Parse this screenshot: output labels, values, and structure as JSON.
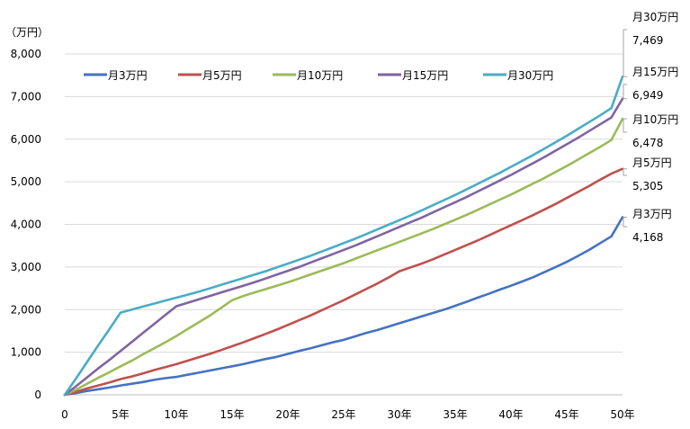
{
  "chart_data": {
    "type": "line",
    "title": "",
    "y_unit_label": "（万円）",
    "xlabel": "",
    "ylabel": "",
    "x": [
      0,
      1,
      2,
      3,
      4,
      5,
      6,
      7,
      8,
      9,
      10,
      11,
      12,
      13,
      14,
      15,
      16,
      17,
      18,
      19,
      20,
      21,
      22,
      23,
      24,
      25,
      26,
      27,
      28,
      29,
      30,
      31,
      32,
      33,
      34,
      35,
      36,
      37,
      38,
      39,
      40,
      41,
      42,
      43,
      44,
      45,
      46,
      47,
      48,
      49,
      50
    ],
    "x_tick_values": [
      0,
      5,
      10,
      15,
      20,
      25,
      30,
      35,
      40,
      45,
      50
    ],
    "x_tick_labels": [
      "0",
      "5年",
      "10年",
      "15年",
      "20年",
      "25年",
      "30年",
      "35年",
      "40年",
      "45年",
      "50年"
    ],
    "y_tick_values": [
      0,
      1000,
      2000,
      3000,
      4000,
      5000,
      6000,
      7000,
      8000
    ],
    "y_tick_labels": [
      "0",
      "1,000",
      "2,000",
      "3,000",
      "4,000",
      "5,000",
      "6,000",
      "7,000",
      "8,000"
    ],
    "xlim": [
      0,
      50
    ],
    "ylim": [
      0,
      8000
    ],
    "grid": true,
    "legend_position": "top",
    "series": [
      {
        "name": "月3万円",
        "color": "#4472c4",
        "values": [
          0,
          40,
          90,
          130,
          170,
          220,
          260,
          300,
          350,
          390,
          420,
          470,
          520,
          570,
          620,
          670,
          720,
          780,
          840,
          890,
          960,
          1030,
          1090,
          1160,
          1230,
          1290,
          1370,
          1450,
          1520,
          1600,
          1680,
          1760,
          1840,
          1920,
          2000,
          2090,
          2180,
          2280,
          2370,
          2470,
          2560,
          2660,
          2760,
          2880,
          3000,
          3120,
          3260,
          3400,
          3560,
          3720,
          4168
        ],
        "end_label": "月3万円",
        "end_value": "4,168"
      },
      {
        "name": "月5万円",
        "color": "#c0504d",
        "values": [
          0,
          70,
          150,
          220,
          290,
          370,
          430,
          500,
          580,
          650,
          720,
          800,
          880,
          960,
          1050,
          1140,
          1230,
          1330,
          1430,
          1530,
          1640,
          1750,
          1860,
          1980,
          2100,
          2220,
          2350,
          2480,
          2610,
          2750,
          2900,
          2990,
          3080,
          3180,
          3290,
          3400,
          3510,
          3620,
          3740,
          3860,
          3980,
          4100,
          4220,
          4350,
          4480,
          4620,
          4760,
          4900,
          5050,
          5190,
          5305
        ],
        "end_label": "月5万円",
        "end_value": "5,305"
      },
      {
        "name": "月10万円",
        "color": "#9bbb59",
        "values": [
          0,
          120,
          260,
          400,
          530,
          670,
          800,
          950,
          1090,
          1230,
          1380,
          1540,
          1700,
          1860,
          2040,
          2220,
          2320,
          2400,
          2480,
          2560,
          2640,
          2730,
          2820,
          2910,
          3000,
          3090,
          3190,
          3290,
          3390,
          3490,
          3590,
          3690,
          3790,
          3890,
          4000,
          4110,
          4220,
          4340,
          4460,
          4580,
          4700,
          4830,
          4960,
          5090,
          5230,
          5370,
          5520,
          5670,
          5820,
          5980,
          6478
        ],
        "end_label": "月10万円",
        "end_value": "6,478"
      },
      {
        "name": "月15万円",
        "color": "#8064a2",
        "values": [
          0,
          200,
          410,
          620,
          820,
          1030,
          1240,
          1450,
          1660,
          1870,
          2080,
          2160,
          2240,
          2320,
          2400,
          2480,
          2560,
          2640,
          2730,
          2820,
          2910,
          3000,
          3100,
          3200,
          3300,
          3400,
          3500,
          3610,
          3720,
          3830,
          3940,
          4050,
          4160,
          4280,
          4400,
          4520,
          4640,
          4770,
          4900,
          5030,
          5160,
          5300,
          5440,
          5580,
          5730,
          5880,
          6030,
          6190,
          6350,
          6510,
          6949
        ],
        "end_label": "月15万円",
        "end_value": "6,949"
      },
      {
        "name": "月30万円",
        "color": "#4bacc6",
        "values": [
          0,
          380,
          770,
          1160,
          1540,
          1930,
          2000,
          2070,
          2140,
          2210,
          2280,
          2350,
          2420,
          2500,
          2580,
          2660,
          2740,
          2820,
          2900,
          2990,
          3080,
          3170,
          3260,
          3360,
          3460,
          3560,
          3660,
          3770,
          3880,
          3990,
          4100,
          4210,
          4330,
          4450,
          4570,
          4690,
          4820,
          4950,
          5080,
          5210,
          5350,
          5490,
          5630,
          5780,
          5930,
          6080,
          6240,
          6400,
          6560,
          6730,
          7469
        ],
        "end_label": "月30万円",
        "end_value": "7,469"
      }
    ]
  }
}
